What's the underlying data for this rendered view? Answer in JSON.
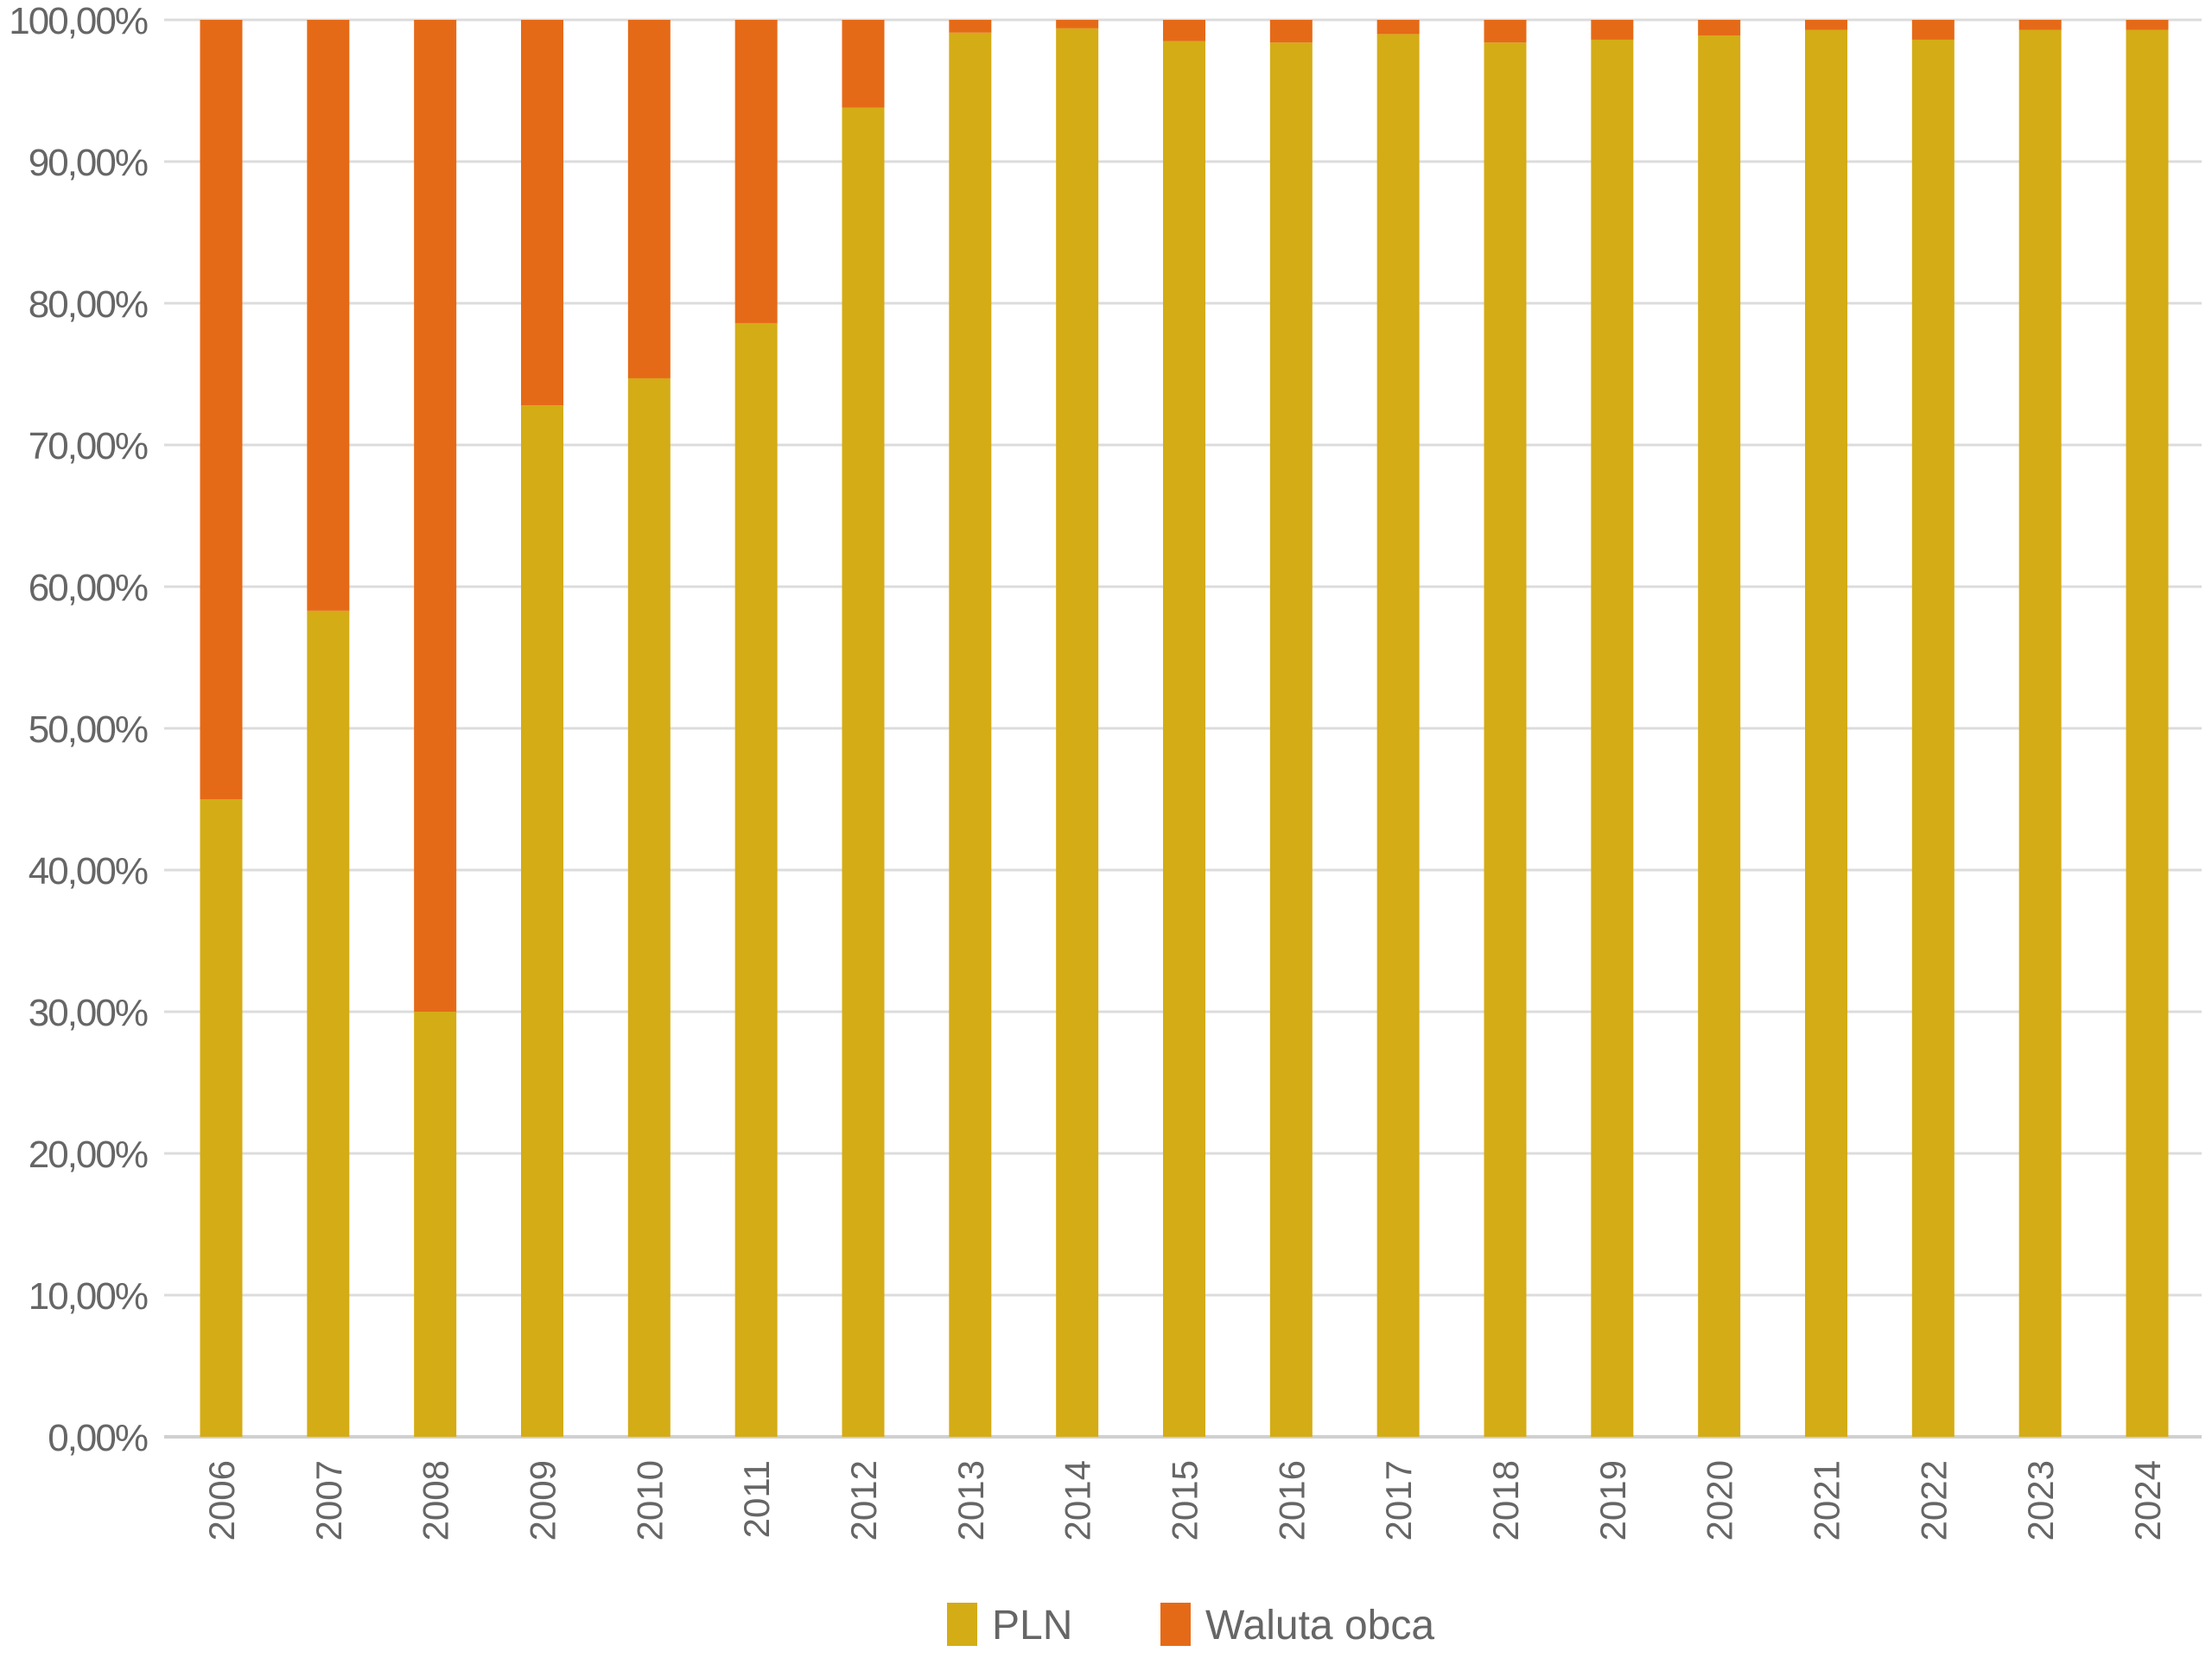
{
  "chart_data": {
    "type": "bar",
    "stacked": true,
    "categories": [
      "2006",
      "2007",
      "2008",
      "2009",
      "2010",
      "2011",
      "2012",
      "2013",
      "2014",
      "2015",
      "2016",
      "2017",
      "2018",
      "2019",
      "2020",
      "2021",
      "2022",
      "2023",
      "2024"
    ],
    "series": [
      {
        "name": "PLN",
        "color": "#D4AC16",
        "values": [
          45.0,
          58.3,
          30.0,
          72.8,
          74.7,
          78.6,
          93.8,
          99.1,
          99.4,
          98.5,
          98.4,
          99.0,
          98.4,
          98.6,
          98.9,
          99.3,
          98.6,
          99.3,
          99.3
        ]
      },
      {
        "name": "Waluta obca",
        "color": "#E56A17",
        "values": [
          55.0,
          41.7,
          70.0,
          27.2,
          25.3,
          21.4,
          6.2,
          0.9,
          0.6,
          1.5,
          1.6,
          1.0,
          1.6,
          1.4,
          1.1,
          0.7,
          1.4,
          0.7,
          0.7
        ]
      }
    ],
    "yticks": [
      "0,00%",
      "10,00%",
      "20,00%",
      "30,00%",
      "40,00%",
      "50,00%",
      "60,00%",
      "70,00%",
      "80,00%",
      "90,00%",
      "100,00%"
    ],
    "ylim": [
      0,
      100
    ],
    "grid": true,
    "legend": "bottom",
    "xlabel": "",
    "ylabel": "",
    "title": ""
  }
}
